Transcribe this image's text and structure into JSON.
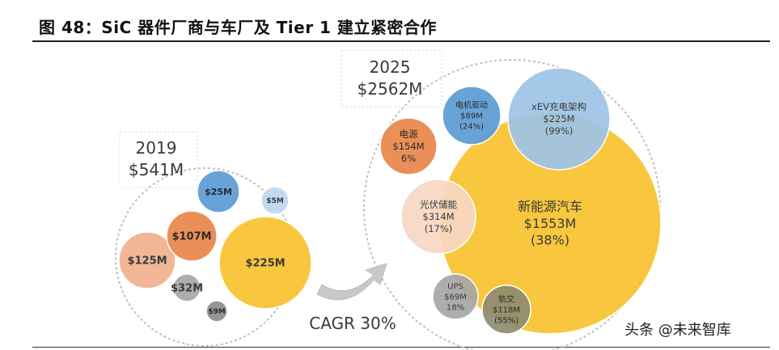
{
  "title": "图 48：SiC 器件厂商与车厂及 Tier 1 建立紧密合作",
  "watermark": "头条 @未来智库",
  "chart_data": {
    "type": "bubble",
    "growth_label": "CAGR 30%",
    "groups": [
      {
        "year": "2019",
        "total": "$541M",
        "bubbles": [
          {
            "lines": [
              "$225M"
            ],
            "value": 225,
            "color": "#F7C22E"
          },
          {
            "lines": [
              "$125M"
            ],
            "value": 125,
            "color": "#EFB08D"
          },
          {
            "lines": [
              "$107M"
            ],
            "value": 107,
            "color": "#E9864A"
          },
          {
            "lines": [
              "$32M"
            ],
            "value": 32,
            "color": "#A6A6A6"
          },
          {
            "lines": [
              "$25M"
            ],
            "value": 25,
            "color": "#5B9BD5"
          },
          {
            "lines": [
              "$9M"
            ],
            "value": 9,
            "color": "#8C8C8C"
          },
          {
            "lines": [
              "$5M"
            ],
            "value": 5,
            "color": "#BDD7EE"
          }
        ]
      },
      {
        "year": "2025",
        "total": "$2562M",
        "bubbles": [
          {
            "lines": [
              "新能源汽车",
              "$1553M",
              "(38%)"
            ],
            "value": 1553,
            "color": "#F7C22E"
          },
          {
            "lines": [
              "光伏储能",
              "$314M",
              "(17%)"
            ],
            "value": 314,
            "color": "#F6D7C3"
          },
          {
            "lines": [
              "xEV充电架构",
              "$225M",
              "(99%)"
            ],
            "value": 225,
            "color": "#9DC3E6"
          },
          {
            "lines": [
              "电源",
              "$154M",
              "6%"
            ],
            "value": 154,
            "color": "#E9864A"
          },
          {
            "lines": [
              "轨交",
              "$118M",
              "(55%)"
            ],
            "value": 118,
            "color": "#8E8C6F"
          },
          {
            "lines": [
              "电机驱动",
              "$89M",
              "(24%)"
            ],
            "value": 89,
            "color": "#5B9BD5"
          },
          {
            "lines": [
              "UPS",
              "$69M",
              "18%"
            ],
            "value": 69,
            "color": "#A6A6A6"
          }
        ]
      }
    ]
  }
}
